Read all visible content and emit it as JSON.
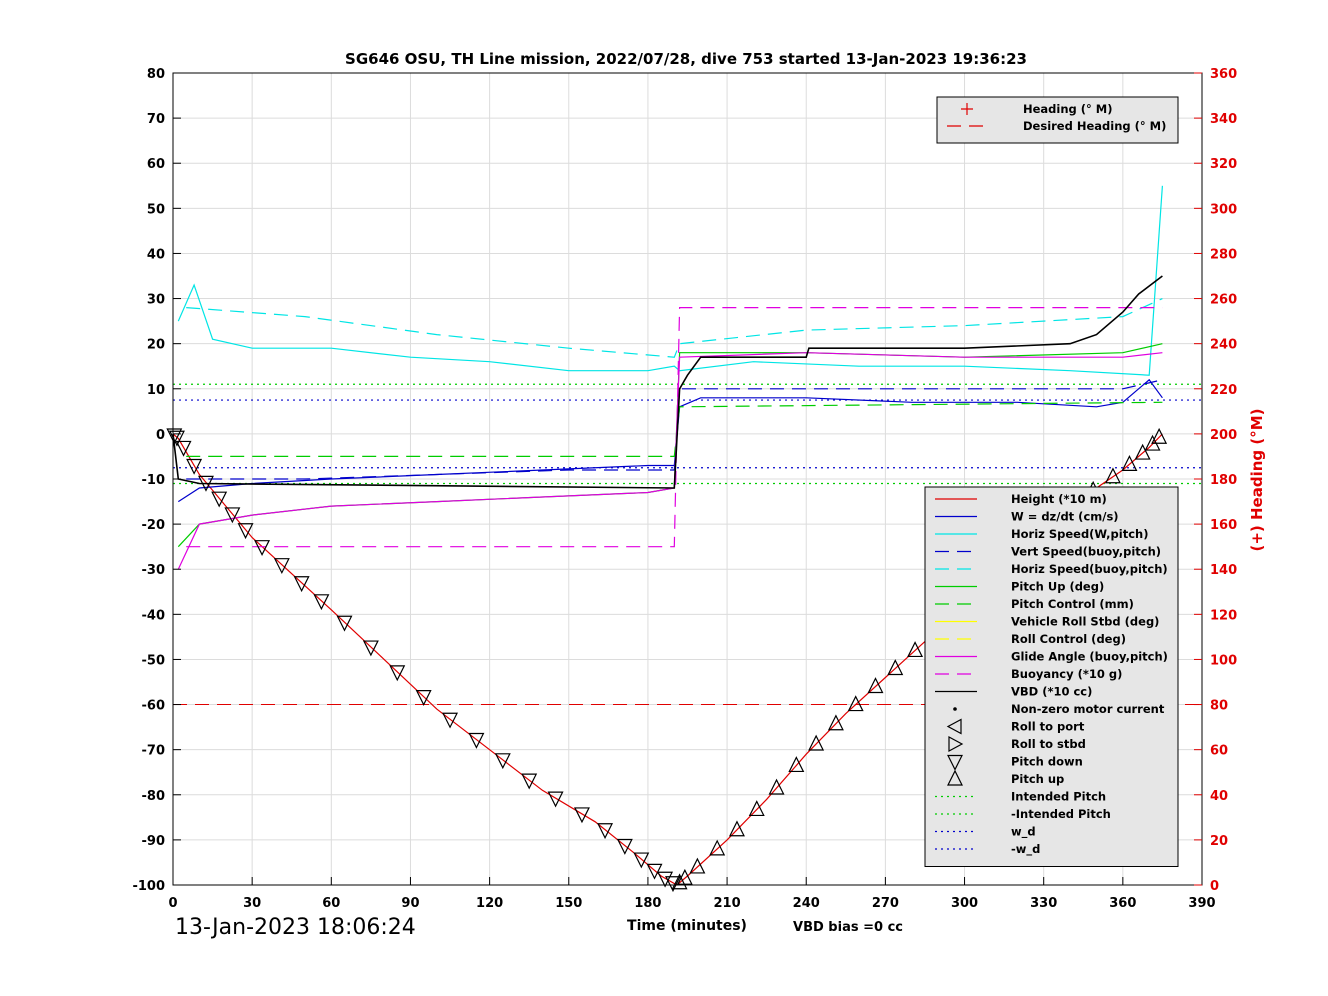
{
  "chart_data": {
    "type": "line",
    "title": "SG646 OSU, TH Line mission, 2022/07/28, dive 753 started 13-Jan-2023 19:36:23",
    "xlabel": "Time (minutes)",
    "ylabel_right": "(+) Heading (°M)",
    "start_stamp": "13-Jan-2023 18:06:24",
    "vbd_bias": "VBD bias =0 cc",
    "xlim": [
      0,
      390
    ],
    "ylim": [
      -100,
      80
    ],
    "ylim_right": [
      0,
      360
    ],
    "xticks": [
      0,
      30,
      60,
      90,
      120,
      150,
      180,
      210,
      240,
      270,
      300,
      330,
      360,
      390
    ],
    "yticks": [
      -100,
      -90,
      -80,
      -70,
      -60,
      -50,
      -40,
      -30,
      -20,
      -10,
      0,
      10,
      20,
      30,
      40,
      50,
      60,
      70,
      80
    ],
    "yticks_right": [
      0,
      20,
      40,
      60,
      80,
      100,
      120,
      140,
      160,
      180,
      200,
      220,
      240,
      260,
      280,
      300,
      320,
      340,
      360
    ],
    "grid": true,
    "legend_top": {
      "placement": "top-right",
      "entries": [
        {
          "label": "Heading (° M)",
          "color": "#e00000",
          "style": "plus"
        },
        {
          "label": "Desired Heading (° M)",
          "color": "#e00000",
          "style": "dash"
        }
      ]
    },
    "legend_main": {
      "placement": "right",
      "entries": [
        {
          "label": "Height (*10 m)",
          "color": "#e00000",
          "style": "solid"
        },
        {
          "label": "W = dz/dt (cm/s)",
          "color": "#0000cc",
          "style": "solid"
        },
        {
          "label": "Horiz Speed(W,pitch)",
          "color": "#00e5e5",
          "style": "solid"
        },
        {
          "label": "Vert Speed(buoy,pitch)",
          "color": "#0000cc",
          "style": "dash"
        },
        {
          "label": "Horiz Speed(buoy,pitch)",
          "color": "#00e5e5",
          "style": "dash"
        },
        {
          "label": "Pitch Up (deg)",
          "color": "#00cc00",
          "style": "solid"
        },
        {
          "label": "Pitch Control (mm)",
          "color": "#00cc00",
          "style": "dash"
        },
        {
          "label": "Vehicle Roll Stbd (deg)",
          "color": "#ffff00",
          "style": "solid"
        },
        {
          "label": "Roll Control (deg)",
          "color": "#ffff00",
          "style": "dash"
        },
        {
          "label": "Glide Angle (buoy,pitch)",
          "color": "#e000e0",
          "style": "solid"
        },
        {
          "label": "Buoyancy (*10 g)",
          "color": "#e000e0",
          "style": "dash"
        },
        {
          "label": "VBD (*10 cc)",
          "color": "#000000",
          "style": "solid"
        },
        {
          "label": "Non-zero motor current",
          "color": "#000000",
          "style": "dot"
        },
        {
          "label": "Roll to port",
          "color": "#000000",
          "style": "tri-left"
        },
        {
          "label": "Roll to stbd",
          "color": "#000000",
          "style": "tri-right"
        },
        {
          "label": "Pitch down",
          "color": "#000000",
          "style": "tri-down"
        },
        {
          "label": "Pitch up",
          "color": "#000000",
          "style": "tri-up"
        },
        {
          "label": "Intended Pitch",
          "color": "#00cc00",
          "style": "dotted"
        },
        {
          "label": "-Intended Pitch",
          "color": "#00cc00",
          "style": "dotted"
        },
        {
          "label": "w_d",
          "color": "#0000cc",
          "style": "dotted"
        },
        {
          "label": "-w_d",
          "color": "#0000cc",
          "style": "dotted"
        }
      ]
    },
    "series": [
      {
        "name": "Height (*10 m)",
        "color": "#e00000",
        "x": [
          0,
          2,
          10,
          20,
          30,
          45,
          60,
          80,
          100,
          120,
          140,
          160,
          175,
          185,
          191,
          195,
          210,
          225,
          240,
          255,
          270,
          285,
          300,
          315,
          330,
          345,
          360,
          370,
          375
        ],
        "y": [
          0,
          -1,
          -9,
          -16,
          -23,
          -31,
          -39,
          -50,
          -61,
          -70,
          -79,
          -86,
          -93,
          -98,
          -100,
          -98,
          -90,
          -81,
          -71,
          -62,
          -54,
          -46,
          -39,
          -30,
          -22,
          -14,
          -8,
          -3,
          0
        ]
      },
      {
        "name": "W = dz/dt (cm/s)",
        "color": "#0000cc",
        "x": [
          2,
          10,
          30,
          60,
          100,
          140,
          180,
          190,
          192,
          200,
          240,
          280,
          320,
          350,
          360,
          370,
          375
        ],
        "y": [
          -15,
          -12,
          -11,
          -10,
          -9,
          -8,
          -7,
          -7,
          6,
          8,
          8,
          7,
          7,
          6,
          7,
          12,
          8
        ]
      },
      {
        "name": "Horiz Speed(W,pitch)",
        "color": "#00e5e5",
        "x": [
          2,
          8,
          15,
          30,
          60,
          90,
          120,
          150,
          180,
          190,
          192,
          220,
          260,
          300,
          340,
          370,
          375
        ],
        "y": [
          25,
          33,
          21,
          19,
          19,
          17,
          16,
          14,
          14,
          15,
          14,
          16,
          15,
          15,
          14,
          13,
          55
        ]
      },
      {
        "name": "Vert Speed(buoy,pitch)",
        "color": "#0000cc",
        "x": [
          5,
          50,
          100,
          150,
          190,
          192,
          240,
          300,
          360,
          375
        ],
        "y": [
          -10,
          -10,
          -9,
          -8,
          -8,
          10,
          10,
          10,
          10,
          12
        ]
      },
      {
        "name": "Horiz Speed(buoy,pitch)",
        "color": "#00e5e5",
        "x": [
          5,
          50,
          100,
          150,
          190,
          192,
          240,
          300,
          360,
          375
        ],
        "y": [
          28,
          26,
          22,
          19,
          17,
          20,
          23,
          24,
          26,
          30
        ]
      },
      {
        "name": "Pitch Up (deg)",
        "color": "#00cc00",
        "x": [
          2,
          10,
          30,
          60,
          100,
          140,
          180,
          190,
          192,
          240,
          300,
          360,
          375
        ],
        "y": [
          -25,
          -20,
          -18,
          -16,
          -15,
          -14,
          -13,
          -12,
          18,
          18,
          17,
          18,
          20
        ]
      },
      {
        "name": "Pitch Control (mm)",
        "color": "#00cc00",
        "x": [
          5,
          190,
          192,
          375
        ],
        "y": [
          -5,
          -5,
          6,
          7
        ]
      },
      {
        "name": "Glide Angle (buoy,pitch)",
        "color": "#e000e0",
        "x": [
          2,
          10,
          30,
          60,
          100,
          140,
          180,
          190,
          192,
          240,
          300,
          360,
          375
        ],
        "y": [
          -30,
          -20,
          -18,
          -16,
          -15,
          -14,
          -13,
          -12,
          17,
          18,
          17,
          17,
          18
        ]
      },
      {
        "name": "Buoyancy (*10 g)",
        "color": "#e000e0",
        "x": [
          5,
          190,
          192,
          375
        ],
        "y": [
          -25,
          -25,
          28,
          28
        ]
      },
      {
        "name": "VBD (*10 cc)",
        "color": "#000000",
        "x": [
          0,
          2,
          10,
          190,
          192,
          195,
          200,
          240,
          241,
          300,
          340,
          350,
          360,
          366,
          375
        ],
        "y": [
          0,
          -10,
          -11,
          -12,
          10,
          13,
          17,
          17,
          19,
          19,
          20,
          22,
          27,
          31,
          35
        ]
      }
    ],
    "heading_desired": 80,
    "intended_pitch": [
      11,
      -11
    ],
    "w_d": [
      7.5,
      -7.5
    ]
  }
}
